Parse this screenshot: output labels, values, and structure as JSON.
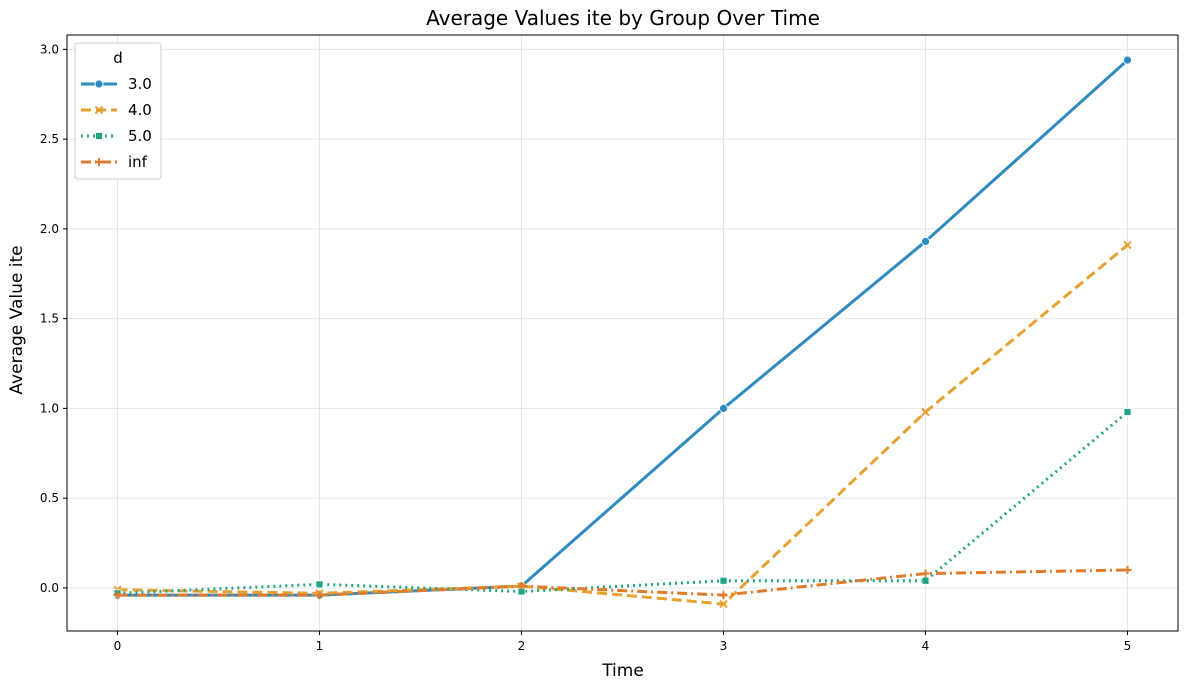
{
  "chart_data": {
    "type": "line",
    "title": "Average Values ite by Group Over Time",
    "xlabel": "Time",
    "ylabel": "Average Value ite",
    "x": [
      0,
      1,
      2,
      3,
      4,
      5
    ],
    "x_tick_labels": [
      "0",
      "1",
      "2",
      "3",
      "4",
      "5"
    ],
    "y_ticks": [
      0.0,
      0.5,
      1.0,
      1.5,
      2.0,
      2.5,
      3.0
    ],
    "y_tick_labels": [
      "0.0",
      "0.5",
      "1.0",
      "1.5",
      "2.0",
      "2.5",
      "3.0"
    ],
    "xlim": [
      -0.25,
      5.25
    ],
    "ylim": [
      -0.24,
      3.08
    ],
    "grid": true,
    "legend": {
      "title": "d",
      "position": "top-left"
    },
    "series": [
      {
        "name": "3.0",
        "color": "#2e8bc0",
        "dash": "solid",
        "marker": "circle",
        "values": [
          -0.04,
          -0.04,
          0.01,
          1.0,
          1.93,
          2.94
        ]
      },
      {
        "name": "4.0",
        "color": "#e5a232",
        "dash": "dashed",
        "marker": "x",
        "values": [
          -0.01,
          -0.03,
          0.01,
          -0.09,
          0.98,
          1.91
        ]
      },
      {
        "name": "5.0",
        "color": "#21a483",
        "dash": "dotted",
        "marker": "square",
        "values": [
          -0.03,
          0.02,
          -0.02,
          0.04,
          0.04,
          0.98
        ]
      },
      {
        "name": "inf",
        "color": "#e07b2a",
        "dash": "dashdot",
        "marker": "plus",
        "values": [
          -0.04,
          -0.04,
          0.01,
          -0.04,
          0.08,
          0.1
        ]
      }
    ]
  }
}
